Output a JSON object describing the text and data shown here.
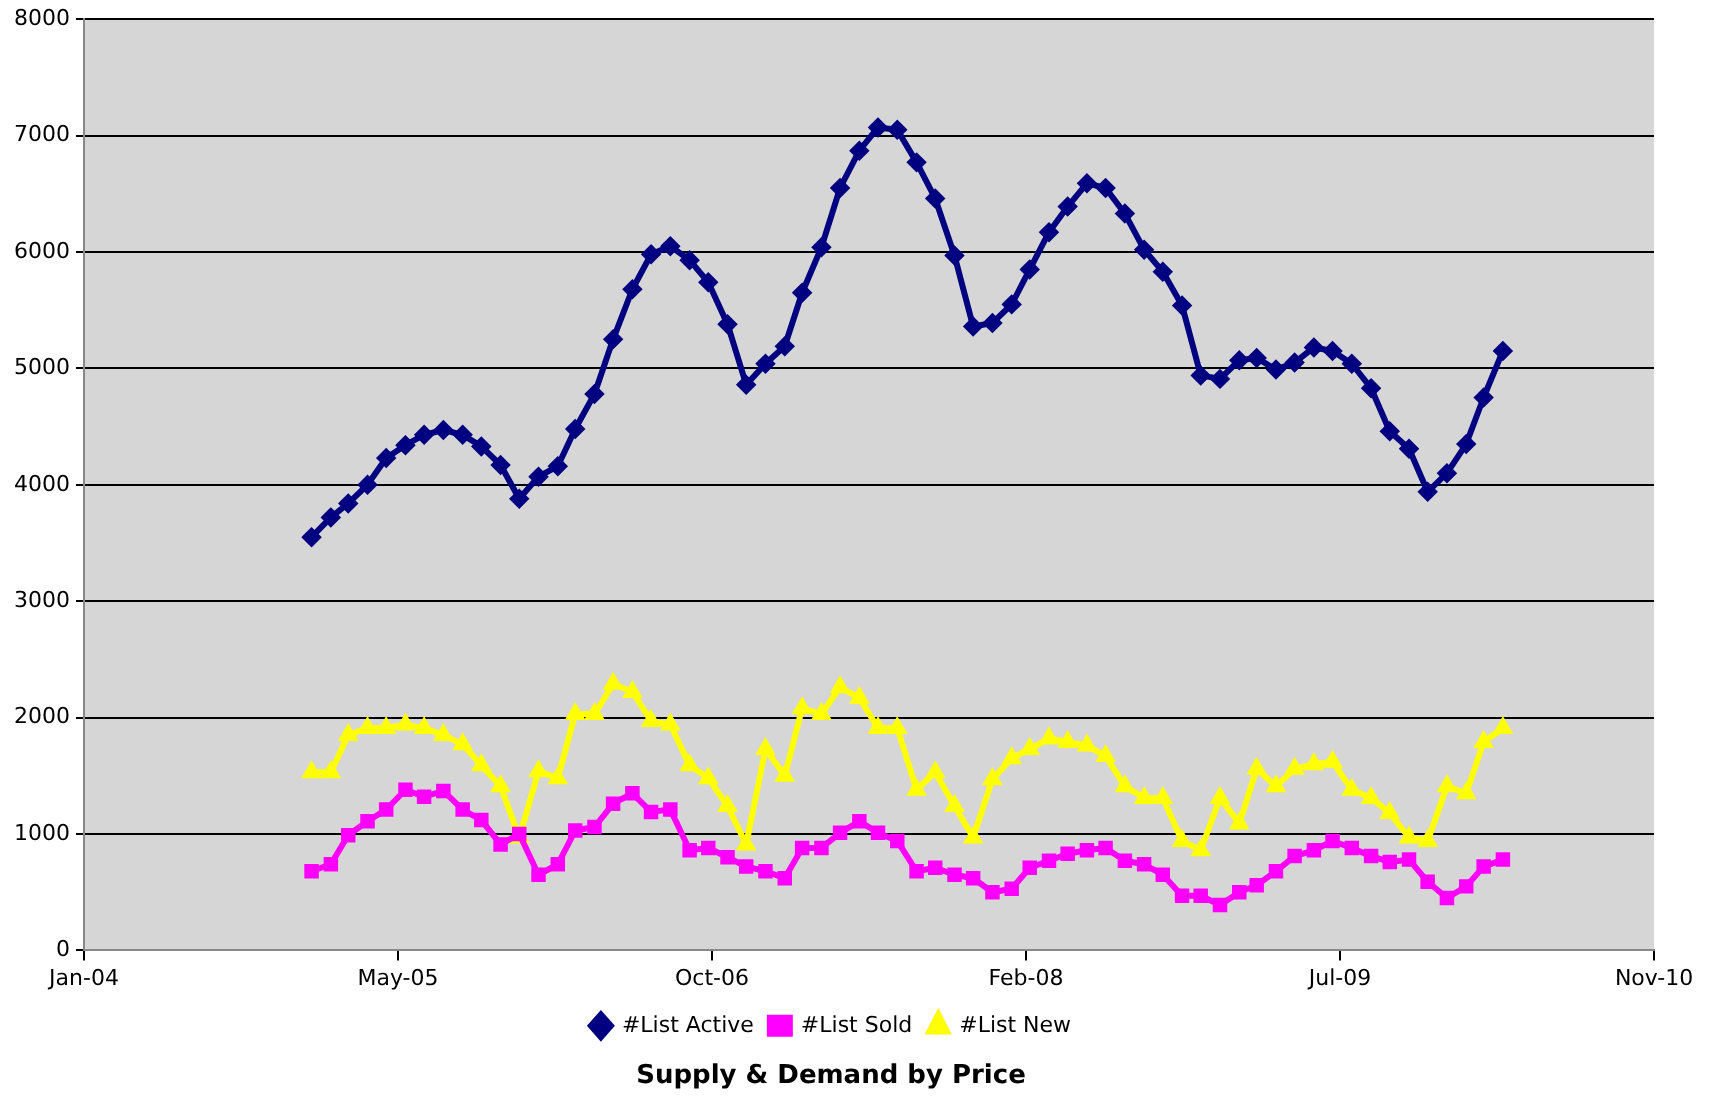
{
  "chart_data": {
    "type": "line",
    "title": "Supply & Demand by Price",
    "x": [
      "2005-01",
      "2005-02",
      "2005-03",
      "2005-04",
      "2005-05",
      "2005-06",
      "2005-07",
      "2005-08",
      "2005-09",
      "2005-10",
      "2005-11",
      "2005-12",
      "2006-01",
      "2006-02",
      "2006-03",
      "2006-04",
      "2006-05",
      "2006-06",
      "2006-07",
      "2006-08",
      "2006-09",
      "2006-10",
      "2006-11",
      "2006-12",
      "2007-01",
      "2007-02",
      "2007-03",
      "2007-04",
      "2007-05",
      "2007-06",
      "2007-07",
      "2007-08",
      "2007-09",
      "2007-10",
      "2007-11",
      "2007-12",
      "2008-01",
      "2008-02",
      "2008-03",
      "2008-04",
      "2008-05",
      "2008-06",
      "2008-07",
      "2008-08",
      "2008-09",
      "2008-10",
      "2008-11",
      "2008-12",
      "2009-01",
      "2009-02",
      "2009-03",
      "2009-04",
      "2009-05",
      "2009-06",
      "2009-07",
      "2009-08",
      "2009-09",
      "2009-10",
      "2009-11",
      "2009-12",
      "2010-01",
      "2010-02",
      "2010-03",
      "2010-04"
    ],
    "series": [
      {
        "name": "#List Active",
        "color": "#000080",
        "marker": "diamond",
        "values": [
          3550,
          3720,
          3840,
          4000,
          4230,
          4340,
          4430,
          4470,
          4430,
          4330,
          4170,
          3880,
          4070,
          4160,
          4480,
          4780,
          5250,
          5680,
          5980,
          6050,
          5930,
          5740,
          5380,
          4860,
          5040,
          5190,
          5650,
          6040,
          6550,
          6870,
          7070,
          7050,
          6770,
          6460,
          5970,
          5360,
          5390,
          5550,
          5850,
          6170,
          6390,
          6590,
          6550,
          6330,
          6020,
          5830,
          5540,
          4940,
          4910,
          5070,
          5090,
          4990,
          5050,
          5180,
          5150,
          5040,
          4830,
          4460,
          4310,
          3940,
          4100,
          4350,
          4750,
          5150
        ]
      },
      {
        "name": "#List Sold",
        "color": "#ff00ff",
        "marker": "square",
        "values": [
          680,
          740,
          990,
          1110,
          1210,
          1380,
          1320,
          1370,
          1210,
          1120,
          910,
          1000,
          650,
          740,
          1030,
          1060,
          1260,
          1350,
          1190,
          1210,
          860,
          880,
          800,
          720,
          680,
          620,
          880,
          880,
          1010,
          1110,
          1010,
          940,
          680,
          710,
          650,
          620,
          500,
          530,
          710,
          770,
          830,
          860,
          880,
          770,
          740,
          650,
          470,
          470,
          390,
          500,
          560,
          680,
          810,
          860,
          940,
          880,
          810,
          760,
          780,
          590,
          450,
          550,
          720,
          780
        ]
      },
      {
        "name": "#List New",
        "color": "#ffff00",
        "marker": "triangle",
        "values": [
          1530,
          1530,
          1850,
          1910,
          1910,
          1940,
          1910,
          1850,
          1770,
          1590,
          1410,
          970,
          1540,
          1480,
          2030,
          2030,
          2290,
          2220,
          1970,
          1940,
          1590,
          1480,
          1240,
          910,
          1730,
          1500,
          2080,
          2030,
          2260,
          2170,
          1910,
          1910,
          1380,
          1530,
          1240,
          970,
          1470,
          1650,
          1730,
          1820,
          1790,
          1760,
          1670,
          1410,
          1310,
          1310,
          940,
          860,
          1310,
          1090,
          1560,
          1410,
          1560,
          1600,
          1620,
          1380,
          1310,
          1180,
          970,
          940,
          1410,
          1350,
          1790,
          1910
        ]
      }
    ],
    "xlim": [
      "2004-01-01",
      "2010-11-30"
    ],
    "xticks": [
      {
        "value": "2004-01-01",
        "label": "Jan-04"
      },
      {
        "value": "2005-05-20",
        "label": "May-05"
      },
      {
        "value": "2006-10-07",
        "label": "Oct-06"
      },
      {
        "value": "2008-02-24",
        "label": "Feb-08"
      },
      {
        "value": "2009-07-13",
        "label": "Jul-09"
      },
      {
        "value": "2010-11-30",
        "label": "Nov-10"
      }
    ],
    "ylim": [
      0,
      8000
    ],
    "yticks": [
      0,
      1000,
      2000,
      3000,
      4000,
      5000,
      6000,
      7000,
      8000
    ],
    "grid": "y",
    "legend": "bottom",
    "line_style": "solid"
  }
}
